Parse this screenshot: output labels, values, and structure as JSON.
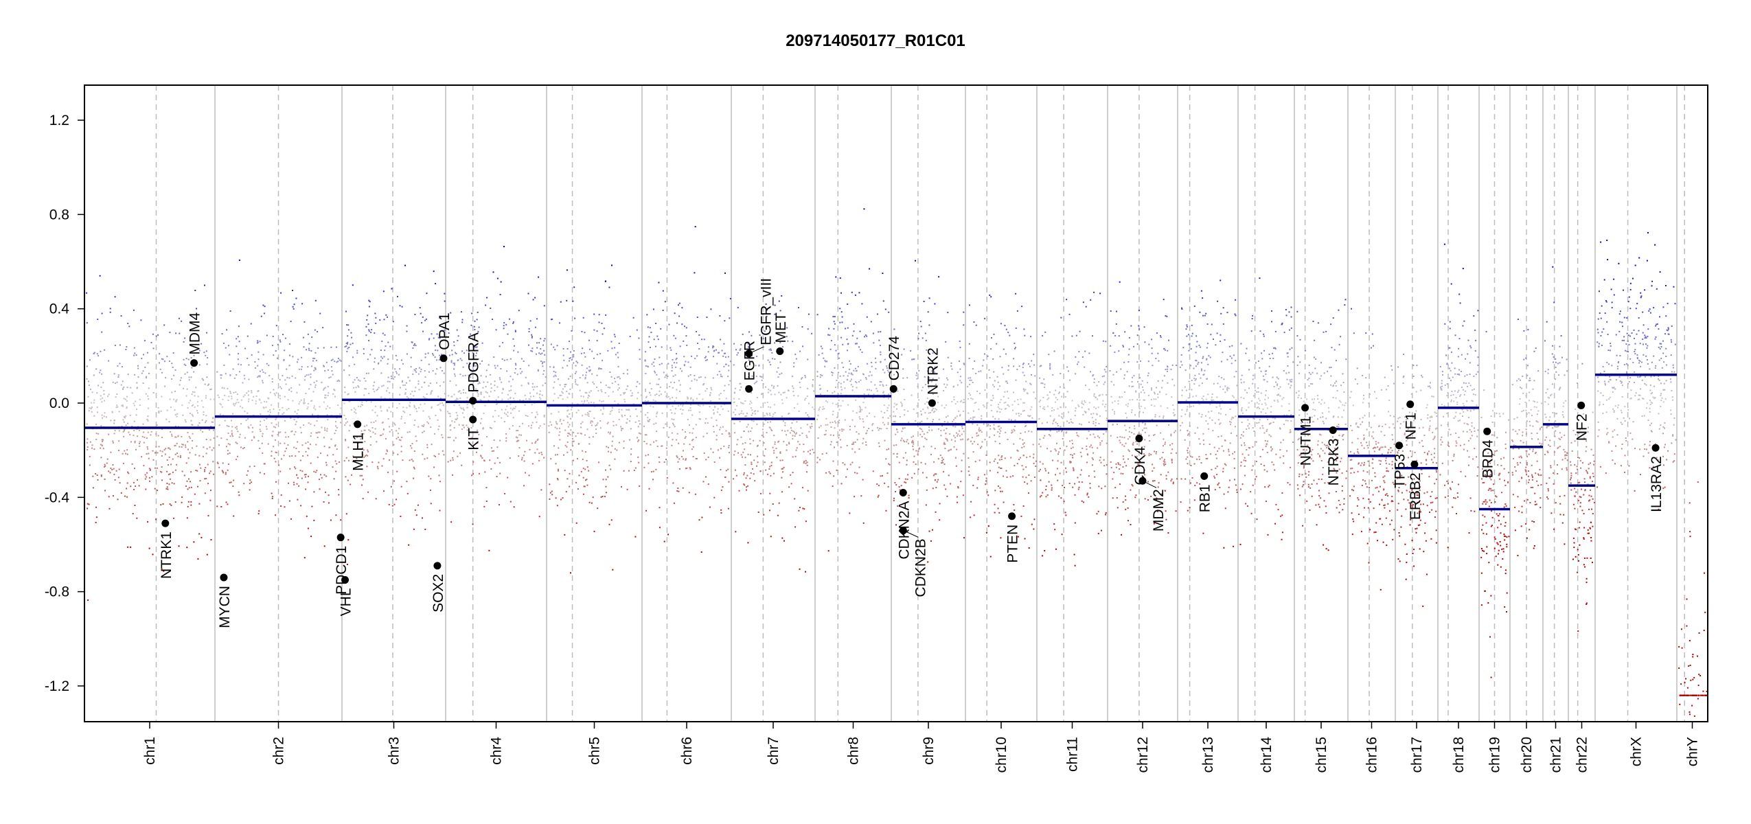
{
  "chart_data": {
    "type": "scatter",
    "title": "209714050177_R01C01",
    "xlabel": "",
    "ylabel": "",
    "ylim": [
      -1.35,
      1.35
    ],
    "y_ticks": [
      "-1.2",
      "-0.8",
      "-0.4",
      "0.0",
      "0.4",
      "0.8",
      "1.2"
    ],
    "y_tick_values": [
      -1.2,
      -0.8,
      -0.4,
      0.0,
      0.4,
      0.8,
      1.2
    ],
    "chromosomes": [
      {
        "name": "chr1",
        "segment_mean": -0.105
      },
      {
        "name": "chr2",
        "segment_mean": -0.057
      },
      {
        "name": "chr3",
        "segment_mean": 0.014
      },
      {
        "name": "chr4",
        "segment_mean": 0.005
      },
      {
        "name": "chr5",
        "segment_mean": -0.01
      },
      {
        "name": "chr6",
        "segment_mean": 0.0
      },
      {
        "name": "chr7",
        "segment_mean": -0.067
      },
      {
        "name": "chr8",
        "segment_mean": 0.029
      },
      {
        "name": "chr9",
        "segment_mean": -0.09
      },
      {
        "name": "chr10",
        "segment_mean": -0.08
      },
      {
        "name": "chr11",
        "segment_mean": -0.11
      },
      {
        "name": "chr12",
        "segment_mean": -0.076
      },
      {
        "name": "chr13",
        "segment_mean": 0.003
      },
      {
        "name": "chr14",
        "segment_mean": -0.057
      },
      {
        "name": "chr15",
        "segment_mean": -0.11
      },
      {
        "name": "chr16",
        "segment_mean": -0.224
      },
      {
        "name": "chr17",
        "segment_mean": -0.276
      },
      {
        "name": "chr18",
        "segment_mean": -0.02
      },
      {
        "name": "chr19",
        "segment_mean": -0.45
      },
      {
        "name": "chr20",
        "segment_mean": -0.186
      },
      {
        "name": "chr21",
        "segment_mean": -0.09
      },
      {
        "name": "chr22",
        "segment_mean": -0.35
      },
      {
        "name": "chrX",
        "segment_mean": 0.12
      },
      {
        "name": "chrY",
        "segment_mean": -1.24
      }
    ],
    "genes": [
      {
        "name": "NTRK1",
        "chr": "chr1",
        "value": -0.51
      },
      {
        "name": "MDM4",
        "chr": "chr1",
        "value": 0.17
      },
      {
        "name": "MYCN",
        "chr": "chr2",
        "value": -0.74
      },
      {
        "name": "PDCD1",
        "chr": "chr2",
        "value": -0.57
      },
      {
        "name": "VHL",
        "chr": "chr3",
        "value": -0.75
      },
      {
        "name": "MLH1",
        "chr": "chr3",
        "value": -0.09
      },
      {
        "name": "SOX2",
        "chr": "chr3",
        "value": -0.69
      },
      {
        "name": "OPA1",
        "chr": "chr3",
        "value": 0.19
      },
      {
        "name": "PDGFRA",
        "chr": "chr4",
        "value": 0.01
      },
      {
        "name": "KIT",
        "chr": "chr4",
        "value": -0.07
      },
      {
        "name": "EGFR",
        "chr": "chr7",
        "value": 0.06
      },
      {
        "name": "EGFR_vIII",
        "chr": "chr7",
        "value": 0.21
      },
      {
        "name": "MET",
        "chr": "chr7",
        "value": 0.22
      },
      {
        "name": "CD274",
        "chr": "chr9",
        "value": 0.06
      },
      {
        "name": "CDKN2A",
        "chr": "chr9",
        "value": -0.38
      },
      {
        "name": "CDKN2B",
        "chr": "chr9",
        "value": -0.54
      },
      {
        "name": "NTRK2",
        "chr": "chr9",
        "value": 0.0
      },
      {
        "name": "PTEN",
        "chr": "chr10",
        "value": -0.48
      },
      {
        "name": "CDK4",
        "chr": "chr12",
        "value": -0.15
      },
      {
        "name": "MDM2",
        "chr": "chr12",
        "value": -0.33
      },
      {
        "name": "RB1",
        "chr": "chr13",
        "value": -0.31
      },
      {
        "name": "NUTM1",
        "chr": "chr15",
        "value": -0.02
      },
      {
        "name": "NTRK3",
        "chr": "chr15",
        "value": -0.115
      },
      {
        "name": "TP53",
        "chr": "chr17",
        "value": -0.18
      },
      {
        "name": "NF1",
        "chr": "chr17",
        "value": -0.005
      },
      {
        "name": "ERBB2",
        "chr": "chr17",
        "value": -0.26
      },
      {
        "name": "BRD4",
        "chr": "chr19",
        "value": -0.12
      },
      {
        "name": "NF2",
        "chr": "chr22",
        "value": -0.01
      },
      {
        "name": "IL13RA2",
        "chr": "chrX",
        "value": -0.19
      }
    ],
    "colors": {
      "gain": "#0000cc",
      "neutral": "#c8c8c8",
      "loss": "#b00000",
      "segment": "#00008b",
      "gene_point": "#000000"
    }
  }
}
